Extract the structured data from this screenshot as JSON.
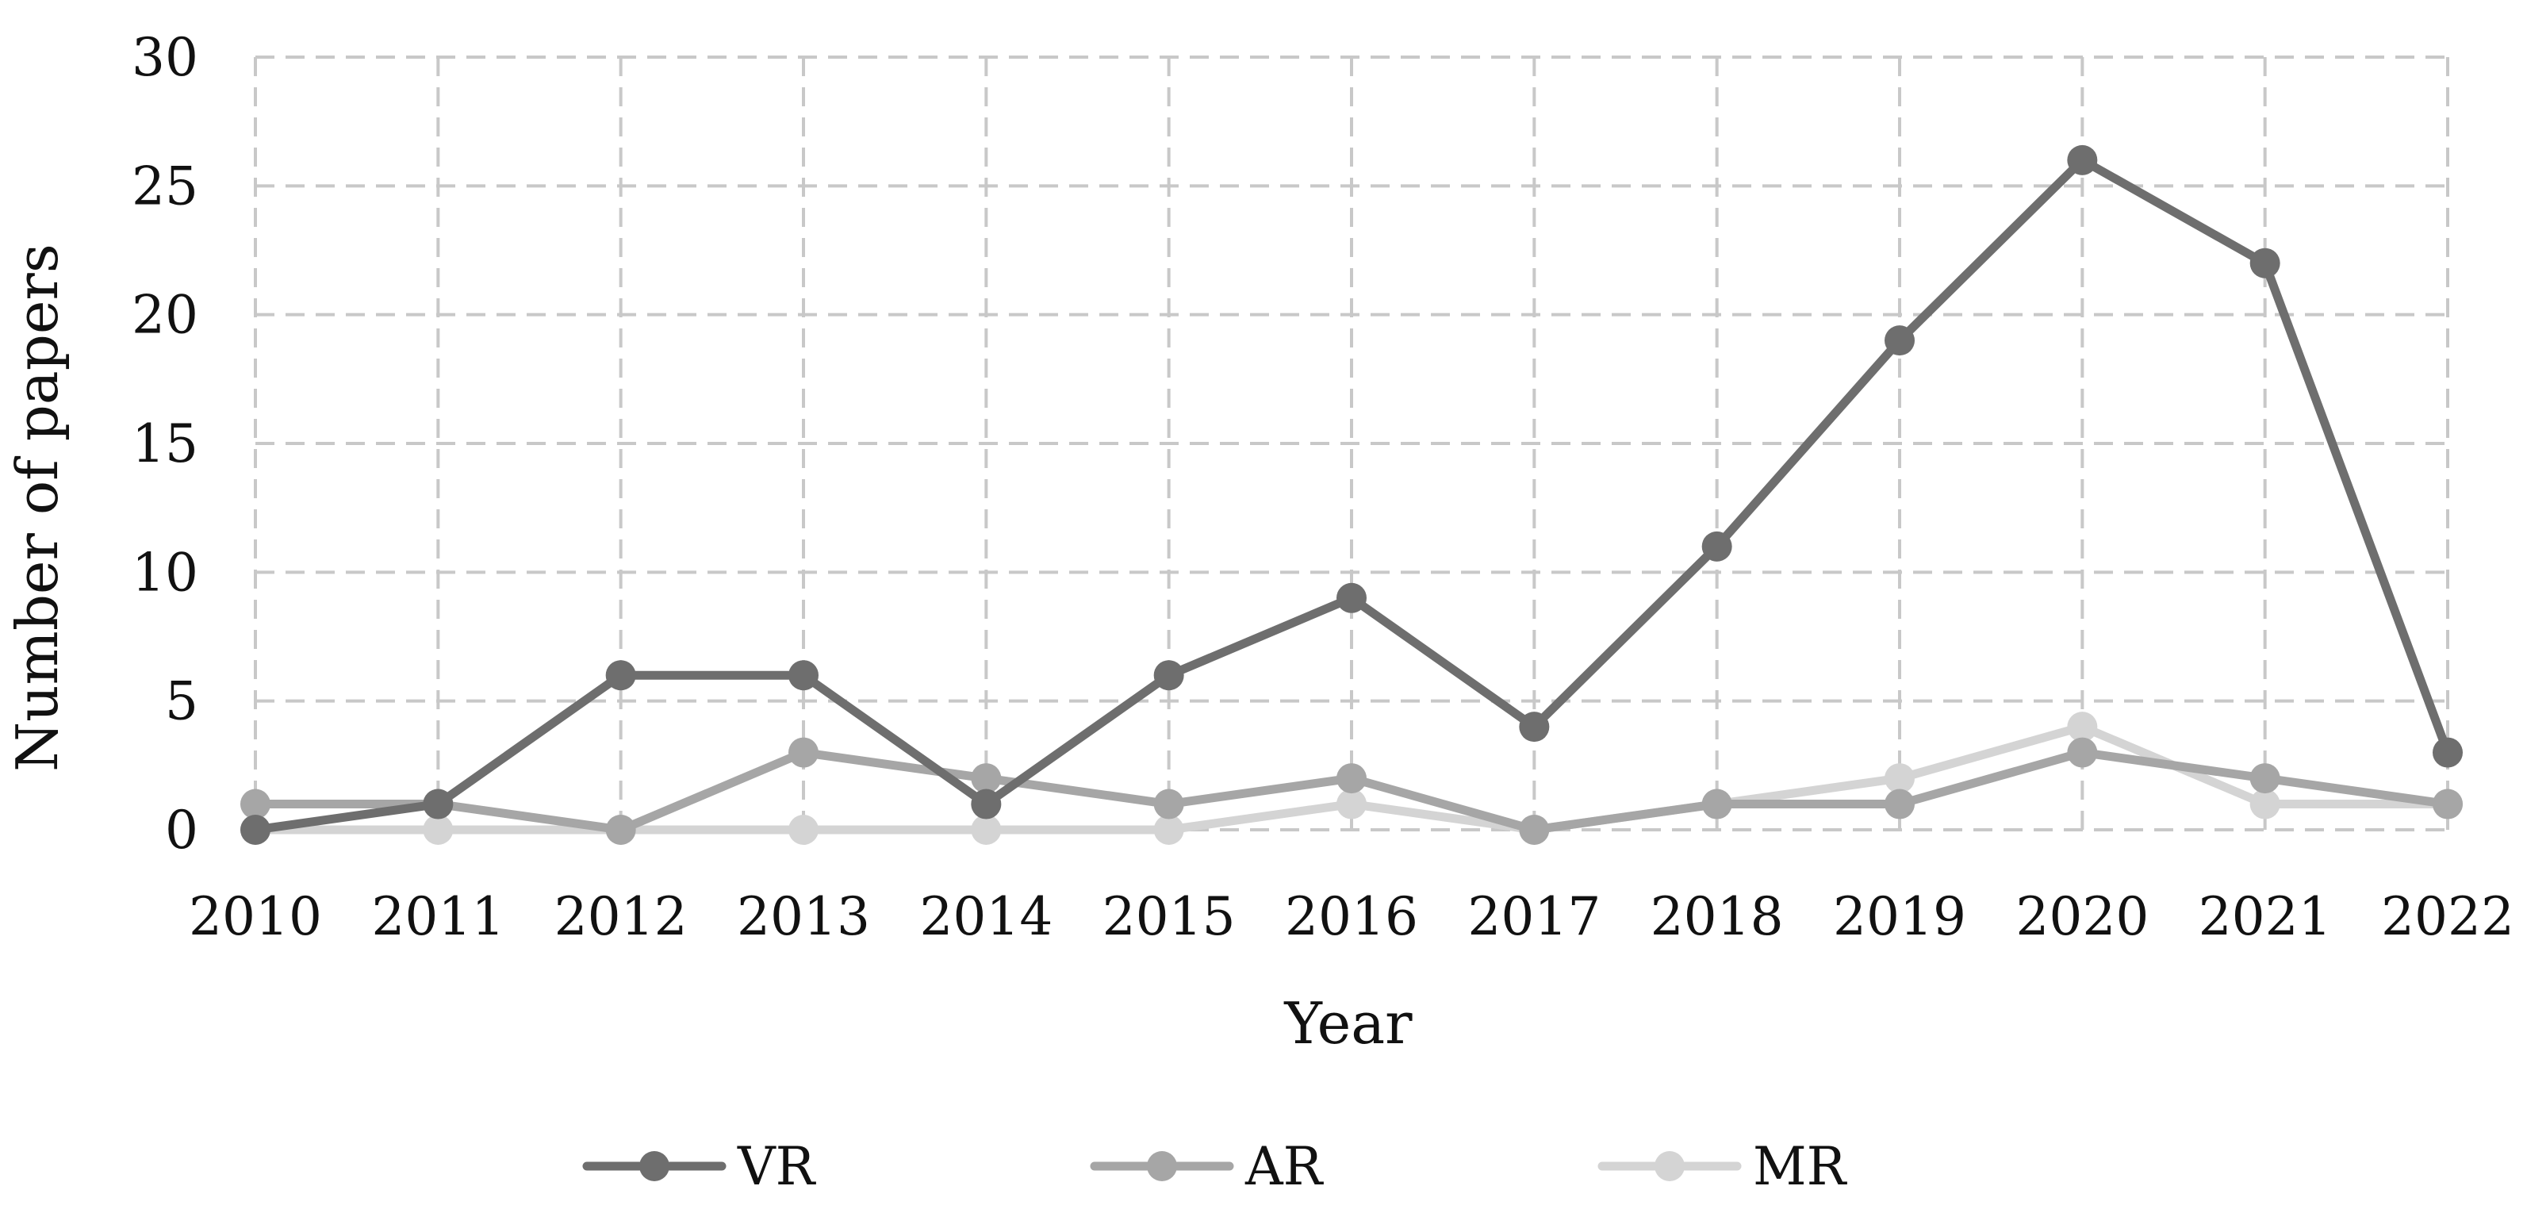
{
  "chart_data": {
    "type": "line",
    "title": "",
    "xlabel": "Year",
    "ylabel": "Number of papers",
    "categories": [
      "2010",
      "2011",
      "2012",
      "2013",
      "2014",
      "2015",
      "2016",
      "2017",
      "2018",
      "2019",
      "2020",
      "2021",
      "2022"
    ],
    "ylim": [
      0,
      30
    ],
    "yticks": [
      "0",
      "5",
      "10",
      "15",
      "20",
      "25",
      "30"
    ],
    "grid": true,
    "legend_position": "bottom",
    "series": [
      {
        "name": "VR",
        "color": "#6e6e6e",
        "values": [
          0,
          1,
          6,
          6,
          1,
          6,
          9,
          4,
          11,
          19,
          26,
          22,
          3
        ]
      },
      {
        "name": "AR",
        "color": "#a6a6a6",
        "values": [
          1,
          1,
          0,
          3,
          2,
          1,
          2,
          0,
          1,
          1,
          3,
          2,
          1
        ]
      },
      {
        "name": "MR",
        "color": "#d4d4d4",
        "values": [
          0,
          0,
          0,
          0,
          0,
          0,
          1,
          0,
          1,
          2,
          4,
          1,
          1
        ]
      }
    ]
  }
}
